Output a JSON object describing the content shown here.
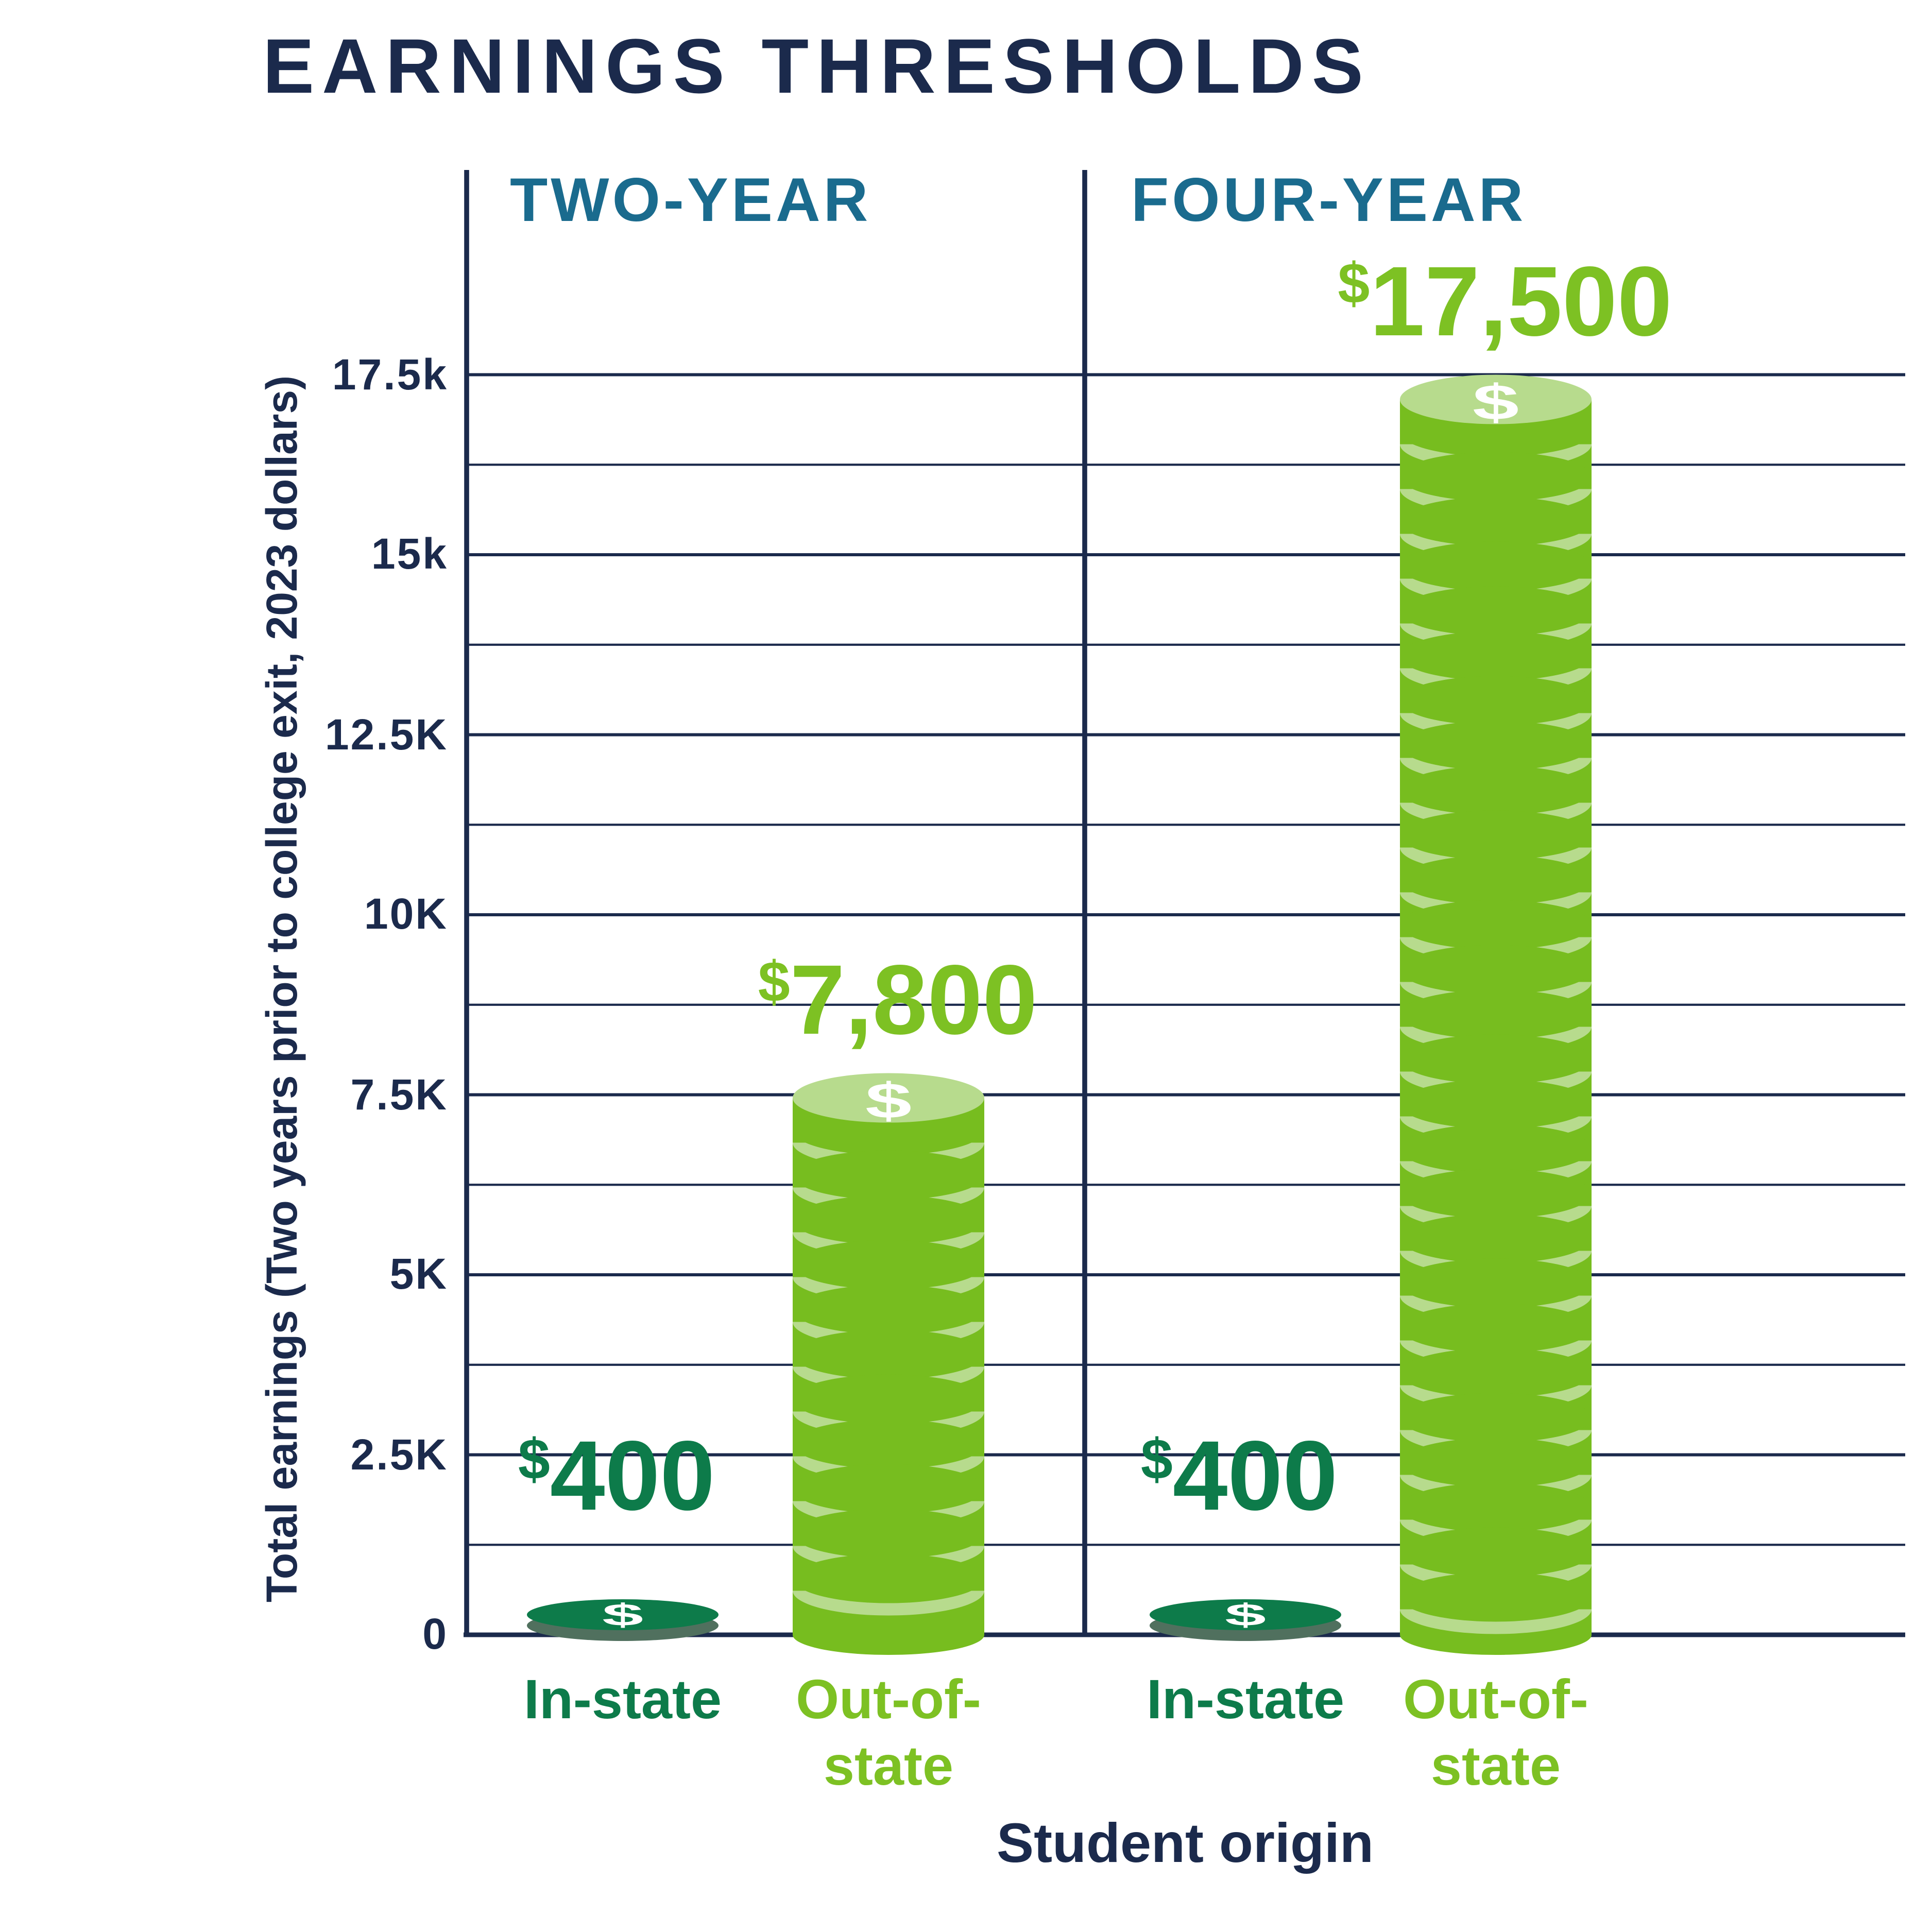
{
  "title": "EARNINGS THRESHOLDS",
  "panels": [
    {
      "header": "TWO-YEAR"
    },
    {
      "header": "FOUR-YEAR"
    }
  ],
  "chart_data": {
    "type": "bar",
    "title": "EARNINGS THRESHOLDS",
    "xlabel": "Student origin",
    "ylabel": "Total earnings (Two years prior to college exit, 2023 dollars)",
    "groups": [
      "TWO-YEAR",
      "FOUR-YEAR"
    ],
    "categories": [
      "In-state",
      "Out-of-state"
    ],
    "series": [
      {
        "group": "TWO-YEAR",
        "category": "In-state",
        "value": 400,
        "value_label": "$400",
        "bar_style": "flat-dark-coin",
        "label_lines": [
          "In-state"
        ]
      },
      {
        "group": "TWO-YEAR",
        "category": "Out-of-state",
        "value": 7800,
        "value_label": "$7,800",
        "bar_style": "coin-stack",
        "label_lines": [
          "Out-of-",
          "state"
        ]
      },
      {
        "group": "FOUR-YEAR",
        "category": "In-state",
        "value": 400,
        "value_label": "$400",
        "bar_style": "flat-dark-coin",
        "label_lines": [
          "In-state"
        ]
      },
      {
        "group": "FOUR-YEAR",
        "category": "Out-of-state",
        "value": 17500,
        "value_label": "$17,500",
        "bar_style": "coin-stack",
        "label_lines": [
          "Out-of-",
          "state"
        ]
      }
    ],
    "ylim": [
      0,
      20000
    ],
    "yticks": {
      "major": [
        {
          "value": 17500,
          "label": "17.5k"
        },
        {
          "value": 15000,
          "label": "15k"
        },
        {
          "value": 12500,
          "label": "12.5K"
        },
        {
          "value": 10000,
          "label": "10K"
        },
        {
          "value": 7500,
          "label": "7.5K"
        },
        {
          "value": 5000,
          "label": "5K"
        },
        {
          "value": 2500,
          "label": "2.5K"
        },
        {
          "value": 0,
          "label": "0"
        }
      ],
      "minor_values": [
        1250,
        3750,
        6250,
        8750,
        11250,
        13750,
        16250
      ]
    },
    "grid": "horizontal major + minor, navy",
    "legend": "none",
    "coin_icon": "dollar-sign"
  },
  "colors": {
    "navy": "#1b2a4c",
    "teal": "#1a6b8e",
    "bright_green": "#77bd1f",
    "text_green": "#7dc123",
    "light_green": "#b7db8d",
    "dark_green": "#0d7b4a",
    "coin_side": "#50705e",
    "white": "#ffffff",
    "background": "#ffffff"
  }
}
